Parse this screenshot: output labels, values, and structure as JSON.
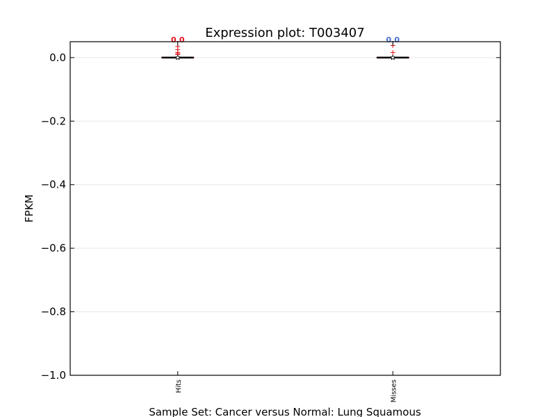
{
  "chart_data": {
    "type": "box",
    "title": "Expression plot: T003407",
    "xlabel": "Sample Set: Cancer versus Normal: Lung Squamous",
    "ylabel": "FPKM",
    "categories": [
      "Hits",
      "Misses"
    ],
    "ylim": [
      -1.0,
      0.05
    ],
    "yticks": [
      0.0,
      -0.2,
      -0.4,
      -0.6,
      -0.8,
      -1.0
    ],
    "ytick_labels": [
      "0.0",
      "−0.2",
      "−0.4",
      "−0.6",
      "−0.8",
      "−1.0"
    ],
    "grid": true,
    "series": [
      {
        "category": "Hits",
        "min": 0.0,
        "q1": 0.0,
        "median": 0.0,
        "q3": 0.0,
        "max": 0.0,
        "mean": 0.0,
        "outliers": [
          0.035,
          0.025,
          0.016,
          0.012,
          0.01
        ],
        "annotation": "0.0",
        "annotation_color": "#e8141c"
      },
      {
        "category": "Misses",
        "min": 0.0,
        "q1": 0.0,
        "median": 0.0,
        "q3": 0.0,
        "max": 0.0,
        "mean": 0.0,
        "outliers": [
          0.038,
          0.016
        ],
        "annotation": "0.0",
        "annotation_color": "#4a6fd0"
      }
    ],
    "colors": {
      "axis": "#000000",
      "grid": "#e6e6e6",
      "median": "#000000",
      "box_edge": "#8b0000",
      "outlier": "#e8141c"
    }
  }
}
